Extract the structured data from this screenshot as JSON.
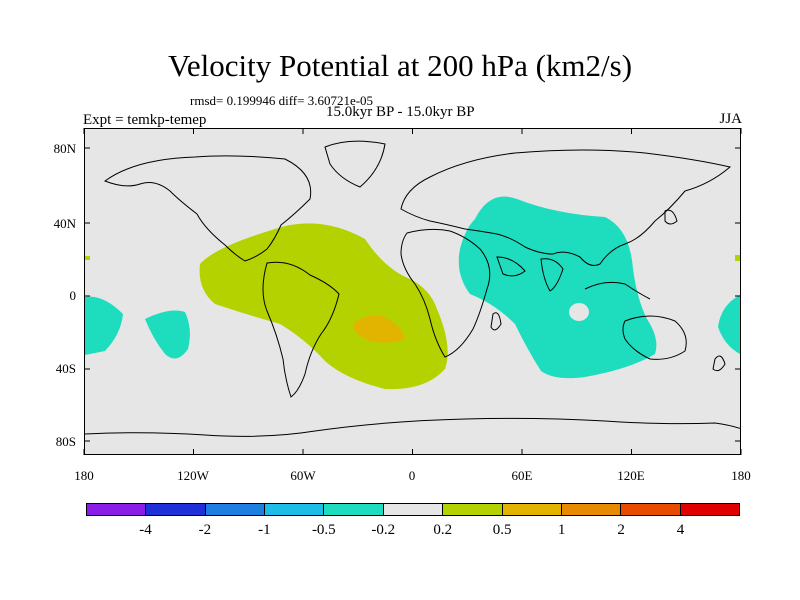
{
  "chart_data": {
    "type": "map-contour",
    "title": "Velocity Potential at 200 hPa (km2/s)",
    "subtitle_stats": "rmsd= 0.199946 diff= 3.60721e-05",
    "experiment": "Expt = temkp-temep",
    "period": "15.0kyr BP - 15.0kyr BP",
    "season": "JJA",
    "x_ticks": [
      "180",
      "120W",
      "60W",
      "0",
      "60E",
      "120E",
      "180"
    ],
    "y_ticks": [
      "80N",
      "40N",
      "0",
      "40S",
      "80S"
    ],
    "colorbar": {
      "labels": [
        "-4",
        "-2",
        "-1",
        "-0.5",
        "-0.2",
        "0.2",
        "0.5",
        "1",
        "2",
        "4"
      ],
      "colors": [
        "#8a1ee6",
        "#2030d8",
        "#1e7fe0",
        "#1ebde8",
        "#1edcbe",
        "#e6e6e6",
        "#b4d200",
        "#e2b400",
        "#e88a00",
        "#e84a00",
        "#e00000"
      ]
    },
    "regions": [
      {
        "label": "negative anomaly (-0.5 to -0.2), Indian Ocean / Asia",
        "lon": [
          35,
          175
        ],
        "lat": [
          -40,
          45
        ],
        "color": "#1edcbe"
      },
      {
        "label": "negative anomaly (-0.5 to -0.2), central Pacific",
        "lon": [
          -175,
          -145
        ],
        "lat": [
          -25,
          0
        ],
        "color": "#1edcbe"
      },
      {
        "label": "positive anomaly (0.2 to 0.5), Atlantic",
        "lon": [
          -120,
          20
        ],
        "lat": [
          -50,
          35
        ],
        "color": "#b4d200"
      },
      {
        "label": "positive anomaly (0.5 to 1), South Atlantic",
        "lon": [
          -32,
          -10
        ],
        "lat": [
          -25,
          -15
        ],
        "color": "#e2b400"
      }
    ]
  }
}
